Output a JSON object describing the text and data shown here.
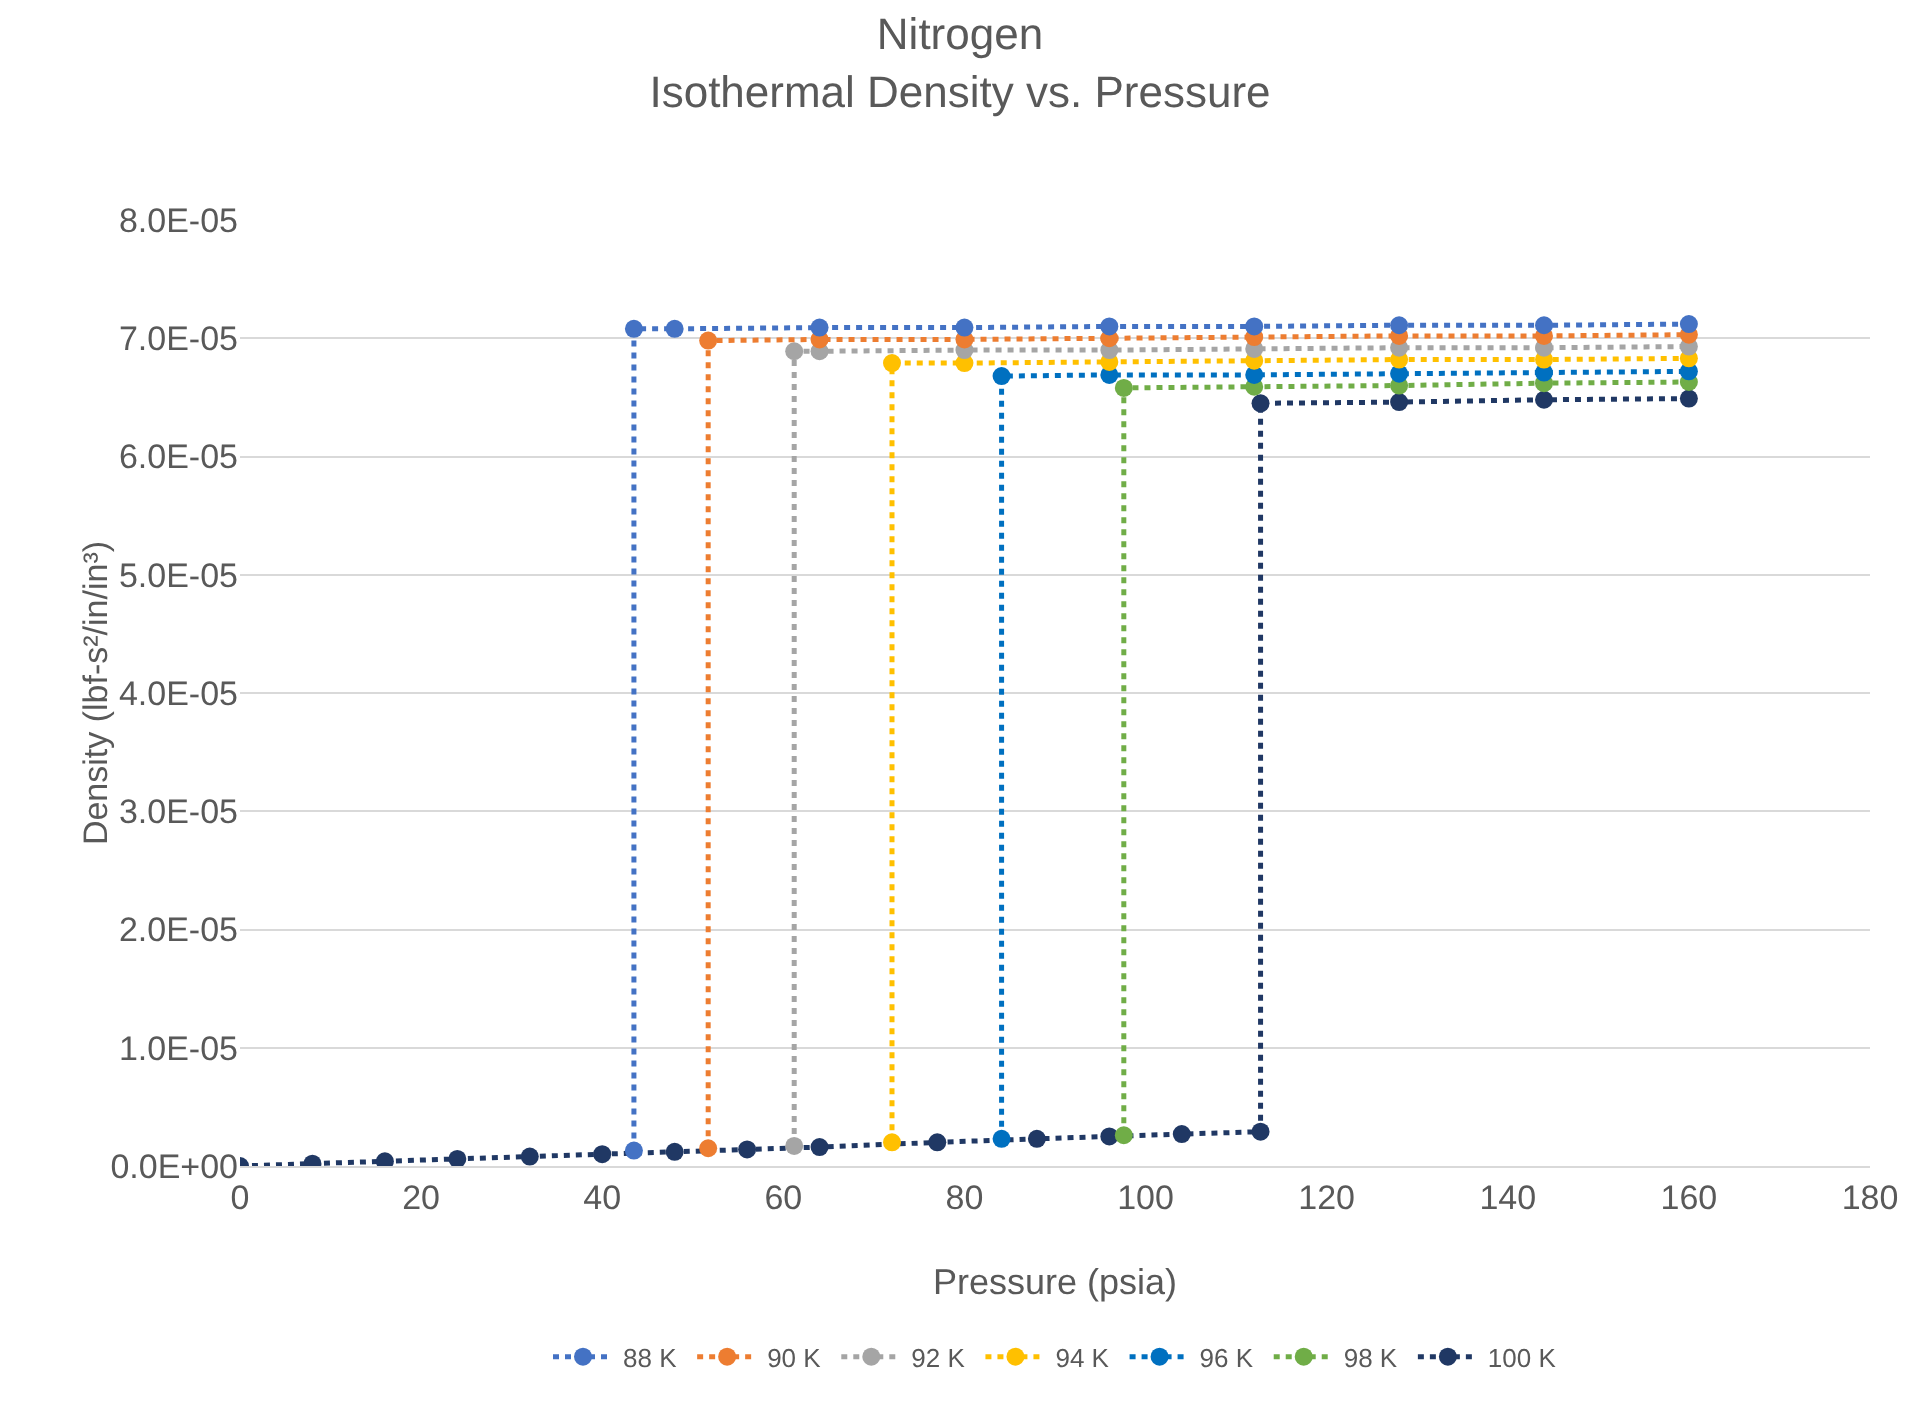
{
  "chart_data": {
    "type": "line",
    "title": "Nitrogen",
    "subtitle": "Isothermal Density vs. Pressure",
    "xlabel": "Pressure (psia)",
    "ylabel": "Density (lbf-s²/in/in³)",
    "xlim": [
      0,
      180
    ],
    "xticks": [
      0,
      20,
      40,
      60,
      80,
      100,
      120,
      140,
      160,
      180
    ],
    "ylim": [
      0,
      8e-05
    ],
    "yticks": [
      {
        "value": 0,
        "label": "0.0E+00"
      },
      {
        "value": 1e-05,
        "label": "1.0E-05"
      },
      {
        "value": 2e-05,
        "label": "2.0E-05"
      },
      {
        "value": 3e-05,
        "label": "3.0E-05"
      },
      {
        "value": 4e-05,
        "label": "4.0E-05"
      },
      {
        "value": 5e-05,
        "label": "5.0E-05"
      },
      {
        "value": 6e-05,
        "label": "6.0E-05"
      },
      {
        "value": 7e-05,
        "label": "7.0E-05"
      },
      {
        "value": 8e-05,
        "label": "8.0E-05"
      }
    ],
    "grid": "y",
    "legend": "bottom",
    "marker": "circle",
    "line_style": "dotted",
    "series": [
      {
        "name": "88 K",
        "color": "#4472c4",
        "x": [
          43.5,
          43.5,
          48,
          64,
          80,
          96,
          112,
          128,
          144,
          160
        ],
        "values": [
          1.3e-06,
          7.08e-05,
          7.08e-05,
          7.09e-05,
          7.09e-05,
          7.1e-05,
          7.1e-05,
          7.11e-05,
          7.11e-05,
          7.12e-05
        ]
      },
      {
        "name": "90 K",
        "color": "#ed7d31",
        "x": [
          51.7,
          51.7,
          64,
          80,
          96,
          112,
          128,
          144,
          160
        ],
        "values": [
          1.5e-06,
          6.98e-05,
          6.99e-05,
          6.99e-05,
          7e-05,
          7.01e-05,
          7.02e-05,
          7.02e-05,
          7.03e-05
        ]
      },
      {
        "name": "92 K",
        "color": "#a5a5a5",
        "x": [
          61.2,
          61.2,
          64,
          80,
          96,
          112,
          128,
          144,
          160
        ],
        "values": [
          1.7e-06,
          6.89e-05,
          6.89e-05,
          6.9e-05,
          6.9e-05,
          6.91e-05,
          6.92e-05,
          6.92e-05,
          6.93e-05
        ]
      },
      {
        "name": "94 K",
        "color": "#ffc000",
        "x": [
          72,
          72,
          80,
          96,
          112,
          128,
          144,
          160
        ],
        "values": [
          2e-06,
          6.79e-05,
          6.79e-05,
          6.8e-05,
          6.81e-05,
          6.82e-05,
          6.82e-05,
          6.83e-05
        ]
      },
      {
        "name": "96 K",
        "color": "#0070c0",
        "x": [
          84.1,
          84.1,
          96,
          112,
          128,
          144,
          160
        ],
        "values": [
          2.3e-06,
          6.68e-05,
          6.69e-05,
          6.69e-05,
          6.7e-05,
          6.71e-05,
          6.72e-05
        ]
      },
      {
        "name": "98 K",
        "color": "#70ad47",
        "x": [
          97.6,
          97.6,
          112,
          128,
          144,
          160
        ],
        "values": [
          2.6e-06,
          6.58e-05,
          6.59e-05,
          6.6e-05,
          6.62e-05,
          6.63e-05
        ]
      },
      {
        "name": "100 K",
        "color": "#203864",
        "x": [
          0,
          8,
          16,
          24,
          32,
          40,
          48,
          56,
          64,
          77,
          88,
          96,
          104,
          112.7,
          112.7,
          128,
          144,
          160
        ],
        "values": [
          0,
          2e-07,
          4e-07,
          6e-07,
          8e-07,
          1e-06,
          1.2e-06,
          1.4e-06,
          1.6e-06,
          2e-06,
          2.3e-06,
          2.5e-06,
          2.7e-06,
          2.9e-06,
          6.45e-05,
          6.46e-05,
          6.48e-05,
          6.49e-05
        ]
      }
    ]
  }
}
